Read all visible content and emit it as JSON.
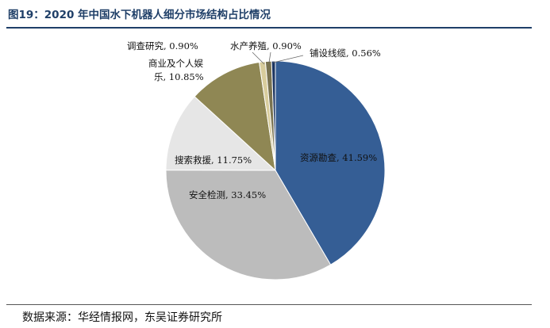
{
  "header": {
    "title": "图19：2020 年中国水下机器人细分市场结构占比情况"
  },
  "footer": {
    "source": "数据来源：华经情报网，东吴证券研究所"
  },
  "chart_data": {
    "type": "pie",
    "title": "",
    "slices": [
      {
        "name": "资源勘查",
        "value": 41.59,
        "label": "资源勘查, 41.59%",
        "color": "#355e95"
      },
      {
        "name": "安全检测",
        "value": 33.45,
        "label": "安全检测, 33.45%",
        "color": "#bcbcbc"
      },
      {
        "name": "搜索救援",
        "value": 11.75,
        "label": "搜索救援, 11.75%",
        "color": "#e6e6e6"
      },
      {
        "name": "商业及个人娱乐",
        "value": 10.85,
        "label_lines": [
          "商业及个人娱",
          "乐, 10.85%"
        ],
        "color": "#8f8754"
      },
      {
        "name": "调查研究",
        "value": 0.9,
        "label": "调查研究, 0.90%",
        "color": "#d8cc9c"
      },
      {
        "name": "水产养殖",
        "value": 0.9,
        "label": "水产养殖, 0.90%",
        "color": "#7a7350"
      },
      {
        "name": "铺设线缆",
        "value": 0.56,
        "label": "铺设线缆, 0.56%",
        "color": "#1c3562"
      }
    ]
  }
}
